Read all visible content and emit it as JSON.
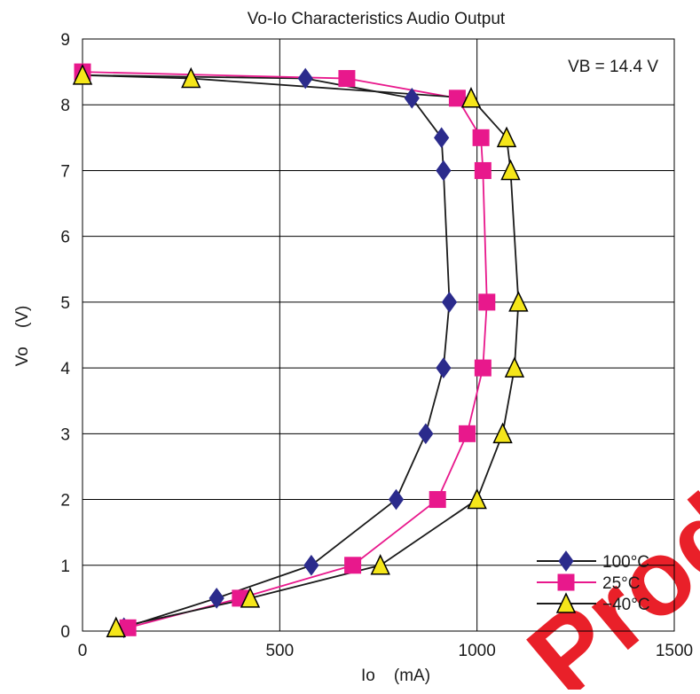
{
  "chart_data": {
    "type": "line",
    "title": "Vo-Io Characteristics  Audio Output",
    "xlabel": "Io    (mA)",
    "ylabel": "Vo    (V)",
    "xlim": [
      0,
      1500
    ],
    "ylim": [
      0,
      9
    ],
    "x_ticks": [
      "0",
      "500",
      "1000",
      "1500"
    ],
    "y_ticks": [
      "0",
      "1",
      "2",
      "3",
      "4",
      "5",
      "6",
      "7",
      "8",
      "9"
    ],
    "grid": true,
    "legend_position": "bottom-right",
    "annotation": "VB = 14.4 V",
    "watermark": "Produ",
    "series": [
      {
        "name": "100°C",
        "color": "#2b2b8c",
        "marker": "diamond",
        "line_color": "#1a1a1a",
        "points": [
          [
            105,
            0.05
          ],
          [
            340,
            0.5
          ],
          [
            580,
            1.0
          ],
          [
            795,
            2.0
          ],
          [
            870,
            3.0
          ],
          [
            915,
            4.0
          ],
          [
            930,
            5.0
          ],
          [
            915,
            7.0
          ],
          [
            910,
            7.5
          ],
          [
            835,
            8.1
          ],
          [
            565,
            8.4
          ],
          [
            0,
            8.45
          ]
        ]
      },
      {
        "name": "25°C",
        "color": "#e8188c",
        "marker": "square",
        "line_color": "#e8188c",
        "points": [
          [
            115,
            0.05
          ],
          [
            400,
            0.5
          ],
          [
            685,
            1.0
          ],
          [
            900,
            2.0
          ],
          [
            975,
            3.0
          ],
          [
            1015,
            4.0
          ],
          [
            1025,
            5.0
          ],
          [
            1015,
            7.0
          ],
          [
            1010,
            7.5
          ],
          [
            950,
            8.1
          ],
          [
            670,
            8.4
          ],
          [
            0,
            8.5
          ]
        ]
      },
      {
        "name": "−40°C",
        "color": "#f5e61a",
        "marker": "triangle",
        "line_color": "#1a1a1a",
        "points": [
          [
            85,
            0.05
          ],
          [
            425,
            0.5
          ],
          [
            755,
            1.0
          ],
          [
            1000,
            2.0
          ],
          [
            1065,
            3.0
          ],
          [
            1095,
            4.0
          ],
          [
            1105,
            5.0
          ],
          [
            1085,
            7.0
          ],
          [
            1075,
            7.5
          ],
          [
            985,
            8.1
          ],
          [
            275,
            8.4
          ],
          [
            0,
            8.45
          ]
        ]
      }
    ]
  }
}
